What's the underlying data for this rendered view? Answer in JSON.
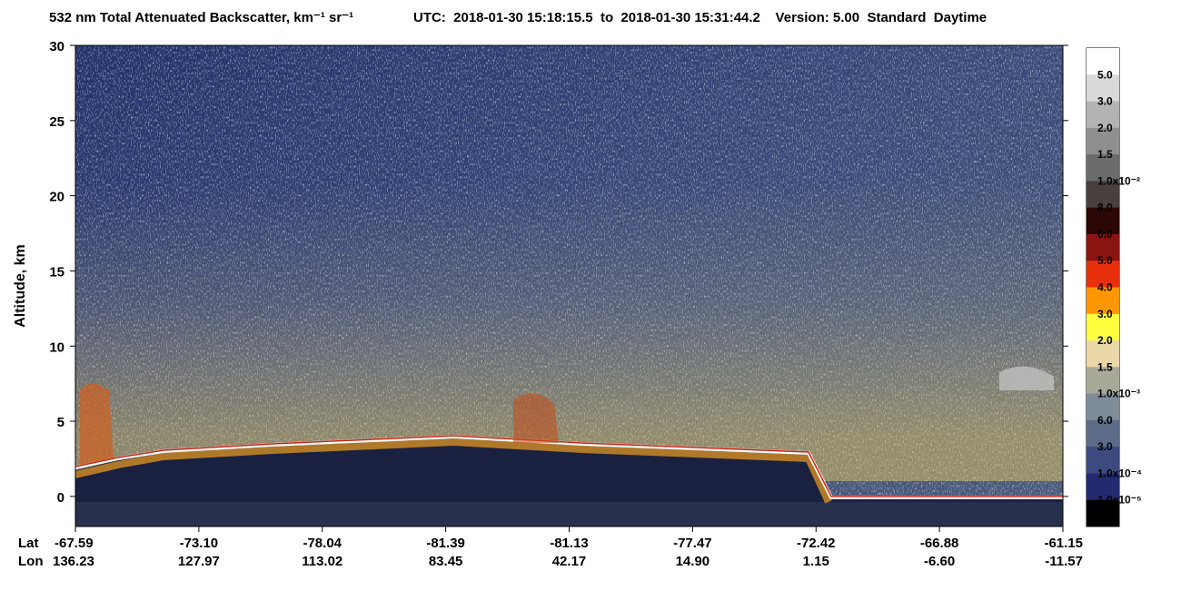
{
  "chart_data": {
    "type": "curtain",
    "title": "532 nm Total Attenuated Backscatter, km⁻¹ sr⁻¹",
    "subtitle": "UTC:  2018-01-30 15:18:15.5  to  2018-01-30 15:31:44.2    Version: 5.00  Standard  Daytime",
    "ylabel": "Altitude, km",
    "ylim": [
      -2,
      30
    ],
    "yticks": [
      0,
      5,
      10,
      15,
      20,
      25,
      30
    ],
    "x_row_labels": [
      "Lat",
      "Lon"
    ],
    "lat": [
      "-67.59",
      "-73.10",
      "-78.04",
      "-81.39",
      "-81.13",
      "-77.47",
      "-72.42",
      "-66.88",
      "-61.15"
    ],
    "lon": [
      "136.23",
      "127.97",
      "113.02",
      "83.45",
      "42.17",
      "14.90",
      "1.15",
      "-6.60",
      "-11.57"
    ],
    "colorbar": {
      "colors": [
        "#ffffff",
        "#d9d9d9",
        "#b3b3b3",
        "#8f8f8f",
        "#6b6b6b",
        "#48403e",
        "#2d0606",
        "#8a1410",
        "#e8300c",
        "#ff9800",
        "#ffff40",
        "#ead8a8",
        "#a8a898",
        "#7e8c98",
        "#5c6c88",
        "#3c4a80",
        "#242a70",
        "#000000"
      ],
      "labels": [
        "5.0",
        "3.0",
        "2.0",
        "1.5",
        "1.0x10⁻²",
        "8.0",
        "6.0",
        "5.0",
        "4.0",
        "3.0",
        "2.0",
        "1.5",
        "1.0x10⁻³",
        "6.0",
        "3.0",
        "1.0x10⁻⁴",
        "1.0x10⁻⁵"
      ]
    }
  }
}
